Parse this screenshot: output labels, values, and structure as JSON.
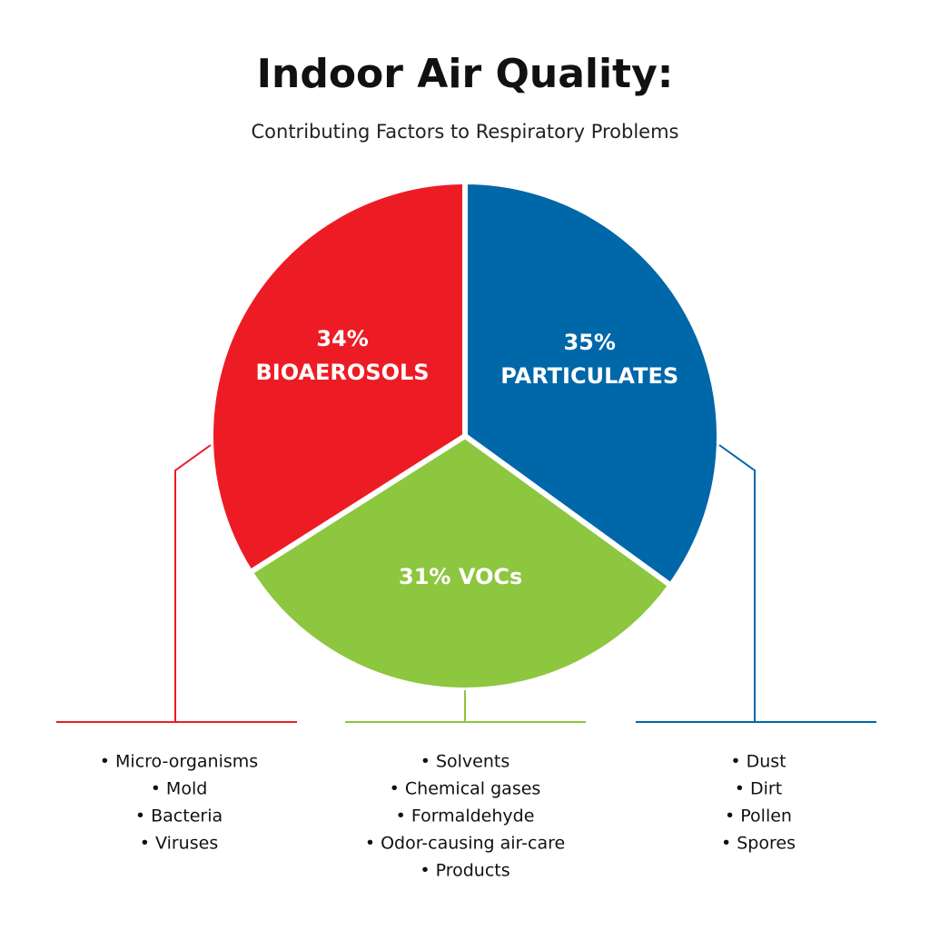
{
  "chart_data": {
    "type": "pie",
    "title": "Indoor Air Quality:",
    "subtitle": "Contributing Factors to Respiratory Problems",
    "categories": [
      "PARTICULATES",
      "VOCs",
      "BIOAEROSOLS"
    ],
    "values": [
      35,
      31,
      34
    ],
    "value_labels": [
      "35%",
      "31%",
      "34%"
    ],
    "colors": [
      "#0067a9",
      "#8dc63f",
      "#ed1c24"
    ],
    "category_items": [
      [
        "• Dust",
        "• Dirt",
        "• Pollen",
        "• Spores"
      ],
      [
        "• Solvents",
        "• Chemical gases",
        "• Formaldehyde",
        "• Odor-causing air-care",
        "• Products"
      ],
      [
        "• Micro-organisms",
        "• Mold",
        "• Bacteria",
        "• Viruses"
      ]
    ]
  }
}
